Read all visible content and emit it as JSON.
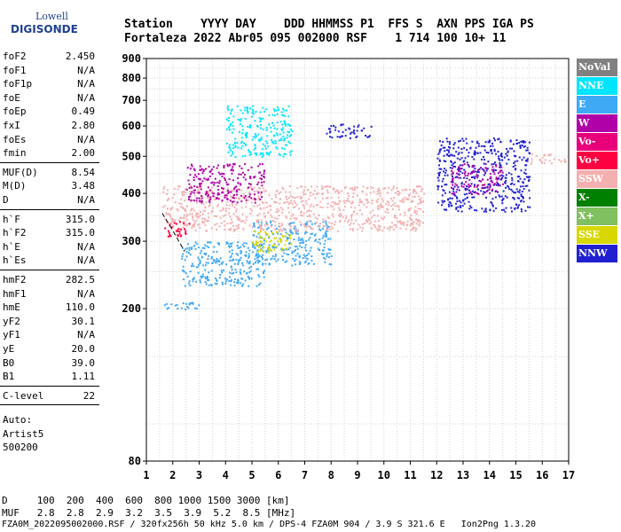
{
  "logo": {
    "line1": "Lowell",
    "line2": "DIGISONDE"
  },
  "header": {
    "labels": "Station    YYYY DAY    DDD HHMMSS P1  FFS S  AXN PPS IGA PS",
    "values": "Fortaleza 2022 Abr05 095 002000 RSF    1 714 100 10+ 11"
  },
  "params": {
    "group1": [
      {
        "name": "foF2",
        "value": "2.450"
      },
      {
        "name": "foF1",
        "value": "N/A"
      },
      {
        "name": "foF1p",
        "value": "N/A"
      },
      {
        "name": "foE",
        "value": "N/A"
      },
      {
        "name": "foEp",
        "value": "0.49"
      },
      {
        "name": "fxI",
        "value": "2.80"
      },
      {
        "name": "foEs",
        "value": "N/A"
      },
      {
        "name": "fmin",
        "value": "2.00"
      }
    ],
    "group2": [
      {
        "name": "MUF(D)",
        "value": "8.54"
      },
      {
        "name": "M(D)",
        "value": "3.48"
      },
      {
        "name": "D",
        "value": "N/A"
      }
    ],
    "group3": [
      {
        "name": "h`F",
        "value": "315.0"
      },
      {
        "name": "h`F2",
        "value": "315.0"
      },
      {
        "name": "h`E",
        "value": "N/A"
      },
      {
        "name": "h`Es",
        "value": "N/A"
      }
    ],
    "group4": [
      {
        "name": "hmF2",
        "value": "282.5"
      },
      {
        "name": "hmF1",
        "value": "N/A"
      },
      {
        "name": "hmE",
        "value": "110.0"
      },
      {
        "name": "yF2",
        "value": "30.1"
      },
      {
        "name": "yF1",
        "value": "N/A"
      },
      {
        "name": "yE",
        "value": "20.0"
      },
      {
        "name": "B0",
        "value": "39.0"
      },
      {
        "name": "B1",
        "value": "1.11"
      }
    ],
    "group5": [
      {
        "name": "C-level",
        "value": "22"
      }
    ],
    "auto": [
      "Auto:",
      "Artist5",
      "500200"
    ]
  },
  "legend": [
    {
      "label": "NoVal",
      "color": "#808080"
    },
    {
      "label": "NNE",
      "color": "#00e5ff"
    },
    {
      "label": "E",
      "color": "#3fa9f5"
    },
    {
      "label": "W",
      "color": "#b000a8"
    },
    {
      "label": "Vo-",
      "color": "#e8007a"
    },
    {
      "label": "Vo+",
      "color": "#ff0040"
    },
    {
      "label": "SSW",
      "color": "#f4b0b0"
    },
    {
      "label": "X-",
      "color": "#008000"
    },
    {
      "label": "X+",
      "color": "#80c060"
    },
    {
      "label": "SSE",
      "color": "#d8d800"
    },
    {
      "label": "NNW",
      "color": "#2020d0"
    }
  ],
  "footer": {
    "line1": "D     100  200  400  600  800 1000 1500 3000 [km]",
    "line2": "MUF   2.8  2.8  2.9  3.2  3.5  3.9  5.2  8.5 [MHz]",
    "line3": "FZA0M_2022095002000.RSF / 320fx256h 50 kHz 5.0 km / DPS-4 FZA0M 904 / 3.9 S 321.6 E   Ion2Png 1.3.20"
  },
  "chart_data": {
    "type": "scatter",
    "title": "",
    "xlabel": "",
    "ylabel": "",
    "xlim": [
      1,
      17
    ],
    "ylim": [
      80,
      900
    ],
    "yscale": "log",
    "x_ticks": [
      1,
      2,
      3,
      4,
      5,
      6,
      7,
      8,
      9,
      10,
      11,
      12,
      13,
      14,
      15,
      16,
      17
    ],
    "y_ticks": [
      80,
      200,
      300,
      400,
      500,
      600,
      700,
      800,
      900
    ],
    "grid": true,
    "legend_position": "right",
    "trace_clusters": [
      {
        "name": "E",
        "color": "#3fa9f5",
        "x_range": [
          1.5,
          3.0
        ],
        "h_range": [
          200,
          210
        ]
      },
      {
        "name": "E",
        "color": "#3fa9f5",
        "x_range": [
          2.3,
          5.5
        ],
        "h_range": [
          230,
          300
        ]
      },
      {
        "name": "E",
        "color": "#3fa9f5",
        "x_range": [
          5.0,
          8.0
        ],
        "h_range": [
          260,
          340
        ]
      },
      {
        "name": "SSW",
        "color": "#f4b0b0",
        "x_range": [
          1.6,
          11.5
        ],
        "h_range": [
          320,
          420
        ]
      },
      {
        "name": "Vo+",
        "color": "#ff0040",
        "x_range": [
          1.6,
          2.6
        ],
        "h_range": [
          310,
          340
        ]
      },
      {
        "name": "W",
        "color": "#b000a8",
        "x_range": [
          2.5,
          5.5
        ],
        "h_range": [
          380,
          480
        ]
      },
      {
        "name": "NNW",
        "color": "#2020d0",
        "x_range": [
          7.8,
          9.5
        ],
        "h_range": [
          560,
          610
        ]
      },
      {
        "name": "NNW",
        "color": "#2020d0",
        "x_range": [
          12.0,
          15.5
        ],
        "h_range": [
          360,
          560
        ]
      },
      {
        "name": "SSE",
        "color": "#d8d800",
        "x_range": [
          5.0,
          6.5
        ],
        "h_range": [
          280,
          320
        ]
      },
      {
        "name": "NNE",
        "color": "#00e5ff",
        "x_range": [
          4.0,
          6.5
        ],
        "h_range": [
          500,
          680
        ]
      },
      {
        "name": "SSW",
        "color": "#f4b0b0",
        "x_range": [
          15.5,
          16.9
        ],
        "h_range": [
          480,
          510
        ]
      },
      {
        "name": "W",
        "color": "#b000a8",
        "x_range": [
          12.5,
          14.5
        ],
        "h_range": [
          400,
          480
        ]
      }
    ],
    "hmf2_profile": [
      {
        "x": 1.6,
        "h": 355
      },
      {
        "x": 2.0,
        "h": 320
      },
      {
        "x": 2.45,
        "h": 282
      }
    ]
  }
}
